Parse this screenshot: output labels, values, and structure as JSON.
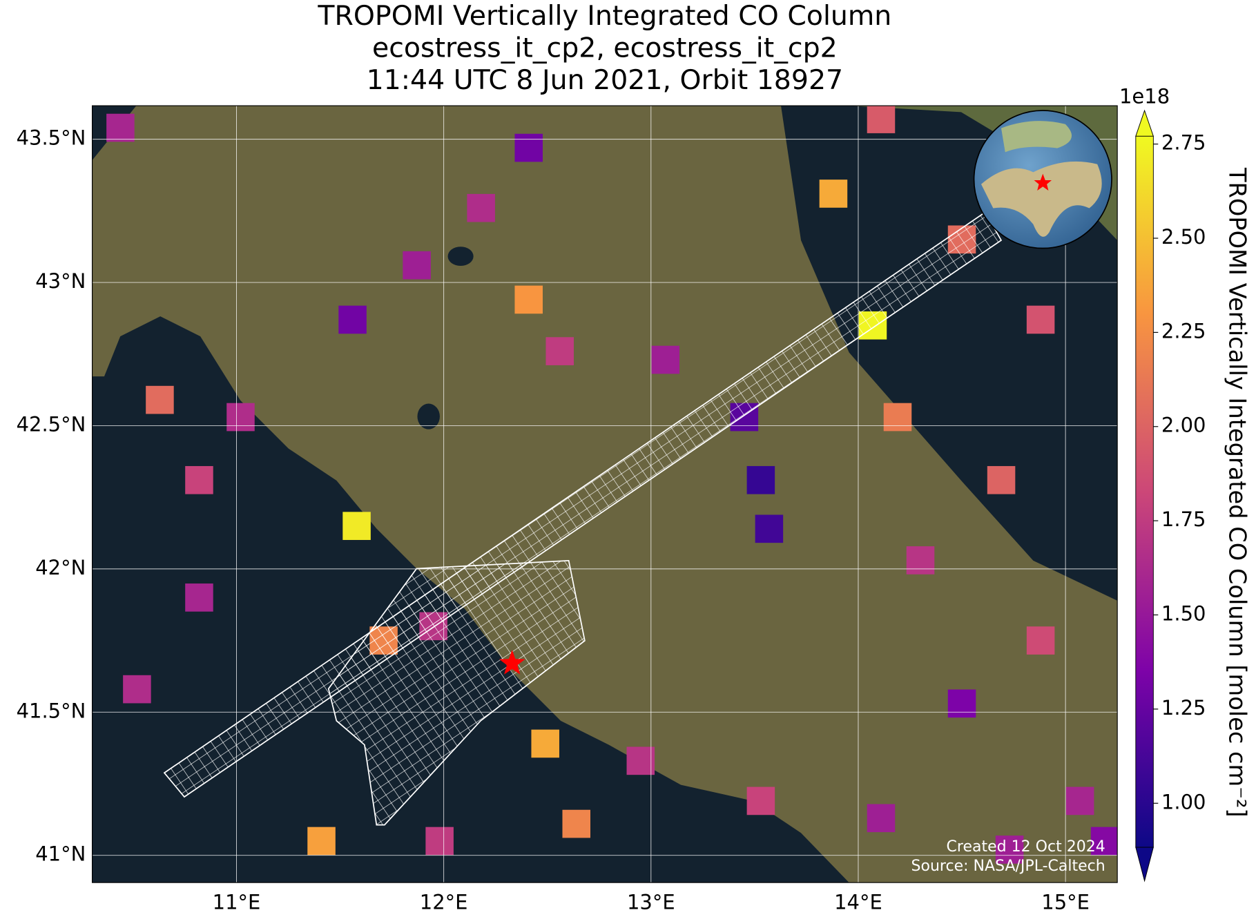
{
  "map": {
    "title": [
      "TROPOMI Vertically Integrated CO Column",
      "ecostress_it_cp2, ecostress_it_cp2",
      "11:44 UTC 8 Jun 2021, Orbit 18927"
    ],
    "lonlim": [
      10.304,
      15.25
    ],
    "latlim": [
      40.905,
      43.617
    ],
    "lonticks": [
      {
        "value": 11,
        "label": "11°E"
      },
      {
        "value": 12,
        "label": "12°E"
      },
      {
        "value": 13,
        "label": "13°E"
      },
      {
        "value": 14,
        "label": "14°E"
      },
      {
        "value": 15,
        "label": "15°E"
      }
    ],
    "latticks": [
      {
        "value": 41,
        "label": "41°N"
      },
      {
        "value": 41.5,
        "label": "41.5°N"
      },
      {
        "value": 42,
        "label": "42°N"
      },
      {
        "value": 42.5,
        "label": "42.5°N"
      },
      {
        "value": 43,
        "label": "43°N"
      },
      {
        "value": 43.5,
        "label": "43.5°N"
      }
    ],
    "grid": true,
    "colormap": "plasma",
    "colorbar": {
      "label": "TROPOMI Vertically Integrated CO Column [molec cm⁻²]",
      "exponent": "1e18",
      "lim": [
        0.883,
        2.771
      ],
      "ticks": [
        {
          "value": 1,
          "label": "1.00"
        },
        {
          "value": 1.25,
          "label": "1.25"
        },
        {
          "value": 1.5,
          "label": "1.50"
        },
        {
          "value": 1.75,
          "label": "1.75"
        },
        {
          "value": 2,
          "label": "2.00"
        },
        {
          "value": 2.25,
          "label": "2.25"
        },
        {
          "value": 2.5,
          "label": "2.50"
        },
        {
          "value": 2.75,
          "label": "2.75"
        }
      ]
    },
    "cells": {
      "lon": [
        11.58,
        14.07,
        12.49,
        11.41,
        12.41,
        13.88,
        14.19,
        13.45,
        13.53,
        13.57,
        11.56,
        11.87,
        11.02,
        10.63,
        10.82,
        12.18,
        12.56,
        13.07,
        14.5,
        14.88,
        14.69,
        14.3,
        14.5,
        14.88,
        15.07,
        14.11,
        13.53,
        12.95,
        12.64,
        11.98,
        11.71,
        11.95,
        14.11,
        10.44,
        12.41,
        10.52,
        10.82,
        15.19,
        14.73
      ],
      "lat": [
        42.15,
        42.85,
        41.39,
        41.05,
        42.94,
        43.31,
        42.53,
        42.53,
        42.31,
        42.14,
        42.87,
        43.06,
        42.53,
        42.59,
        42.31,
        43.26,
        42.76,
        42.73,
        43.15,
        42.87,
        42.31,
        42.03,
        41.53,
        41.75,
        41.19,
        41.13,
        41.19,
        41.33,
        41.11,
        41.05,
        41.75,
        41.8,
        43.57,
        43.54,
        43.47,
        41.58,
        41.9,
        41.05,
        41.02
      ],
      "values": [
        2.7,
        2.75,
        2.4,
        2.35,
        2.3,
        2.4,
        2.15,
        1.2,
        1.05,
        1.1,
        1.3,
        1.55,
        1.65,
        2.05,
        1.8,
        1.65,
        1.75,
        1.55,
        2.05,
        1.9,
        2.0,
        1.7,
        1.35,
        1.85,
        1.6,
        1.55,
        1.8,
        1.7,
        2.2,
        1.75,
        2.2,
        1.7,
        1.95,
        1.6,
        1.3,
        1.65,
        1.6,
        1.4,
        1.55
      ]
    },
    "site": {
      "lon": 12.33,
      "lat": 41.67,
      "color": "#ff0000"
    },
    "credits": [
      "Created 12 Oct 2024",
      "Source: NASA/JPL-Caltech"
    ]
  }
}
